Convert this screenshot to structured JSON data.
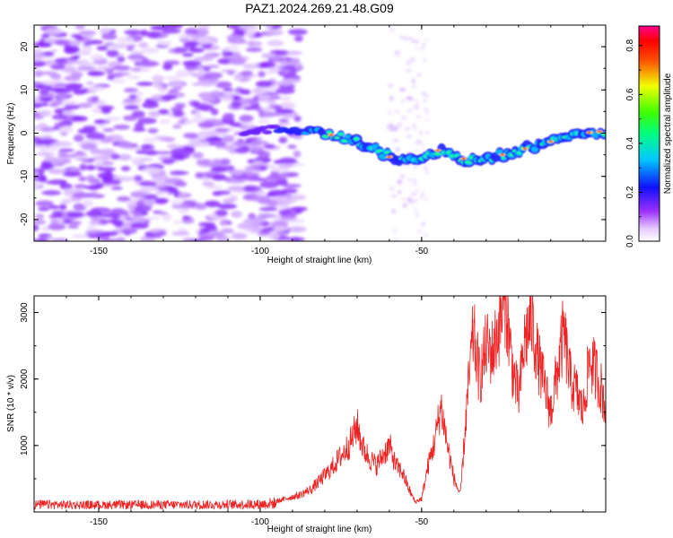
{
  "title": "PAZ1.2024.269.21.48.G09",
  "colors": {
    "snr_line": "#ee2222",
    "frame": "#000000",
    "background": "#ffffff"
  },
  "chart_data": [
    {
      "type": "heatmap",
      "name_label": "spectrogram",
      "title": "PAZ1.2024.269.21.48.G09",
      "xlabel": "Height of straight line (km)",
      "ylabel": "Frequency (Hz)",
      "xlim": [
        -170,
        7
      ],
      "ylim": [
        -25,
        25
      ],
      "x_ticks": [
        -150,
        -100,
        -50
      ],
      "y_ticks": [
        -20,
        -10,
        0,
        10,
        20
      ],
      "colormap": "rainbow (white-violet-blue-cyan-green-yellow-red-magenta)",
      "colorbar": {
        "label": "Normalized spectral amplitude",
        "range": [
          0,
          0.88
        ],
        "ticks": [
          0,
          0.2,
          0.4,
          0.6,
          0.8
        ],
        "tick_labels": [
          "0.0",
          "0.2",
          "0.4",
          "0.6",
          "0.8"
        ]
      },
      "signal_track": [
        {
          "x": -100,
          "y": 1
        },
        {
          "x": -90,
          "y": 0.5
        },
        {
          "x": -80,
          "y": 0
        },
        {
          "x": -70,
          "y": -2
        },
        {
          "x": -65,
          "y": -3.5
        },
        {
          "x": -60,
          "y": -5.5
        },
        {
          "x": -55,
          "y": -6.5
        },
        {
          "x": -50,
          "y": -5.5
        },
        {
          "x": -45,
          "y": -4
        },
        {
          "x": -40,
          "y": -5
        },
        {
          "x": -35,
          "y": -6.5
        },
        {
          "x": -30,
          "y": -6
        },
        {
          "x": -25,
          "y": -5
        },
        {
          "x": -20,
          "y": -4
        },
        {
          "x": -15,
          "y": -3
        },
        {
          "x": -10,
          "y": -2
        },
        {
          "x": -5,
          "y": -0.5
        },
        {
          "x": 0,
          "y": 0
        },
        {
          "x": 7,
          "y": 0.5
        }
      ]
    },
    {
      "type": "line",
      "name_label": "snr",
      "xlabel": "Height of straight line (km)",
      "ylabel": "SNR (10 * v/v)",
      "xlim": [
        -170,
        7
      ],
      "ylim": [
        0,
        3250
      ],
      "x_ticks": [
        -150,
        -100,
        -50
      ],
      "y_ticks": [
        1000,
        2000,
        3000
      ],
      "series": [
        {
          "x": [
            -170,
            -150,
            -130,
            -110,
            -100,
            -95,
            -92,
            -90,
            -88,
            -86,
            -84,
            -82,
            -80,
            -78,
            -76,
            -74,
            -72,
            -70,
            -68,
            -66,
            -64,
            -62,
            -60,
            -58,
            -56,
            -54,
            -52,
            -50,
            -48,
            -46,
            -44,
            -42,
            -40,
            -38,
            -36,
            -34,
            -32,
            -30,
            -28,
            -26,
            -24,
            -22,
            -20,
            -18,
            -16,
            -14,
            -12,
            -10,
            -8,
            -6,
            -4,
            -2,
            0,
            2,
            4,
            6,
            7
          ],
          "values": [
            120,
            110,
            115,
            120,
            130,
            160,
            200,
            230,
            250,
            300,
            350,
            450,
            550,
            650,
            780,
            900,
            1050,
            1300,
            950,
            800,
            700,
            850,
            1000,
            700,
            600,
            350,
            150,
            200,
            700,
            1050,
            1600,
            1000,
            500,
            250,
            1600,
            2700,
            2000,
            2500,
            2400,
            2800,
            3200,
            2200,
            1700,
            2600,
            2900,
            2300,
            1900,
            1500,
            2100,
            2700,
            2000,
            1800,
            1500,
            2300,
            2100,
            1800,
            1500
          ]
        }
      ]
    }
  ]
}
